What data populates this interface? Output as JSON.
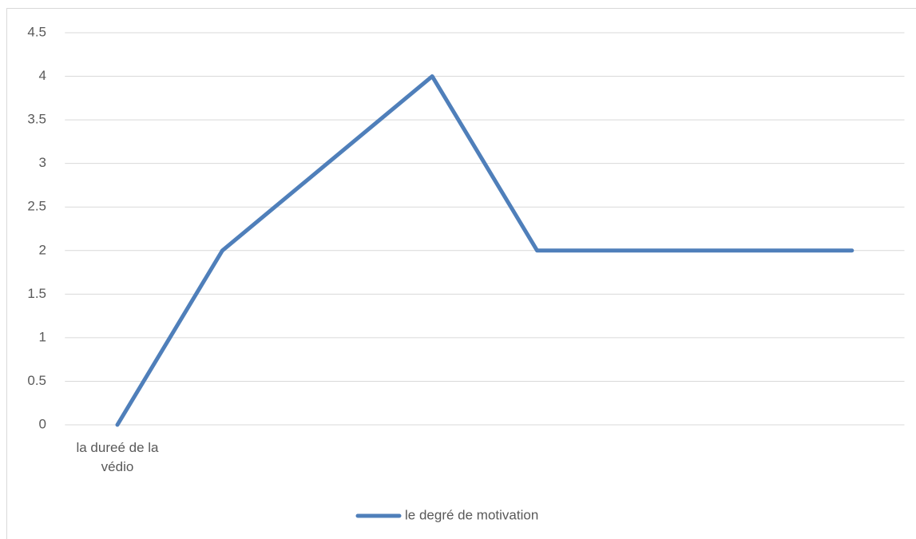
{
  "chart_data": {
    "type": "line",
    "categories": [
      "la dureé de la védio",
      null,
      null,
      null,
      null,
      null,
      null,
      null
    ],
    "series": [
      {
        "name": "le degré de motivation",
        "color": "#4f7fba",
        "values": [
          0,
          2,
          3,
          4,
          2,
          2,
          2,
          2
        ]
      }
    ],
    "ylim": [
      0,
      4.5
    ],
    "yticks": [
      0,
      0.5,
      1,
      1.5,
      2,
      2.5,
      3,
      3.5,
      4,
      4.5
    ],
    "grid": true,
    "legend": "bottom"
  }
}
